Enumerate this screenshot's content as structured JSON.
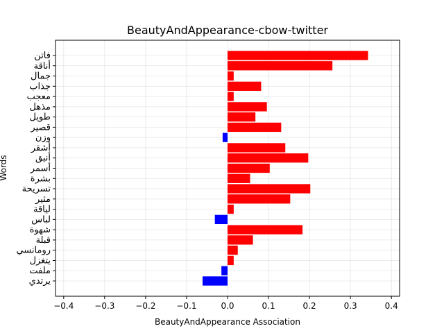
{
  "chart_data": {
    "type": "bar",
    "orientation": "horizontal",
    "title": "BeautyAndAppearance-cbow-twitter",
    "xlabel": "BeautyAndAppearance Association",
    "ylabel": "Words",
    "xlim": [
      -0.42,
      0.42
    ],
    "xticks": [
      "−0.4",
      "−0.3",
      "−0.2",
      "−0.1",
      "0.0",
      "0.1",
      "0.2",
      "0.3",
      "0.4"
    ],
    "grid": true,
    "positive_color": "#ff0000",
    "negative_color": "#0000ff",
    "categories": [
      "فاتن",
      "أناقة",
      "جمال",
      "جذاب",
      "معجب",
      "مذهل",
      "طويل",
      "قصير",
      "وزن",
      "أشقر",
      "أنيق",
      "أسمر",
      "بشرة",
      "تسريحة",
      "مثير",
      "لياقة",
      "لباس",
      "شهوة",
      "قبلة",
      "رومانسي",
      "يتغزل",
      "ملفت",
      "يرتدي"
    ],
    "values": [
      0.343,
      0.256,
      0.015,
      0.082,
      0.015,
      0.096,
      0.068,
      0.131,
      -0.012,
      0.141,
      0.197,
      0.103,
      0.055,
      0.202,
      0.153,
      0.015,
      -0.031,
      0.183,
      0.062,
      0.025,
      0.015,
      -0.015,
      -0.061
    ]
  }
}
